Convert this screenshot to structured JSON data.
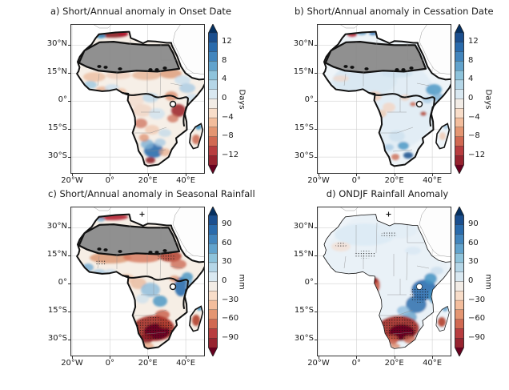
{
  "figure": {
    "background": "#ffffff",
    "description": "Four-panel anomaly maps over Africa with diverging red-blue colorbars; Sahara masked gray in panels a-c; black stippling over strong anomaly regions in panels c-d."
  },
  "colors": {
    "cmap_body": [
      "#1b4f8f",
      "#2a6bac",
      "#4285bd",
      "#62a3cd",
      "#8ec3db",
      "#b5d6e7",
      "#d9e8f1",
      "#f2ece6",
      "#f8ddc9",
      "#f3bd9c",
      "#e49672",
      "#d16952",
      "#b83d3f",
      "#97232f"
    ],
    "cmap_arrow_high": "#053061",
    "cmap_arrow_low": "#67001f",
    "mask_gray": "#909090",
    "grid": "#c8c8c8"
  },
  "panels": [
    {
      "label": "a",
      "title": "a) Short/Annual anomaly in Onset Date",
      "x_tick_labels": [
        "20°W",
        "0°",
        "20°E",
        "40°E"
      ],
      "y_tick_labels": [
        "30°N",
        "15°N",
        "0°",
        "15°S",
        "30°S"
      ],
      "colorbar": {
        "unit": "Days",
        "tick_labels": [
          "12",
          "8",
          "4",
          "0",
          "−4",
          "−8",
          "−12"
        ],
        "tick_values": [
          12,
          8,
          4,
          0,
          -4,
          -8,
          -12
        ],
        "range": [
          -14,
          14
        ]
      }
    },
    {
      "label": "b",
      "title": "b) Short/Annual anomaly in Cessation Date",
      "x_tick_labels": [
        "20°W",
        "0°",
        "20°E",
        "40°E"
      ],
      "y_tick_labels": [
        "30°N",
        "15°N",
        "0°",
        "15°S",
        "30°S"
      ],
      "colorbar": {
        "unit": "Days",
        "tick_labels": [
          "12",
          "8",
          "4",
          "0",
          "−4",
          "−8",
          "−12"
        ],
        "tick_values": [
          12,
          8,
          4,
          0,
          -4,
          -8,
          -12
        ],
        "range": [
          -14,
          14
        ]
      }
    },
    {
      "label": "c",
      "title": "c) Short/Annual anomaly in Seasonal Rainfall",
      "x_tick_labels": [
        "20°W",
        "0°",
        "20°E",
        "40°E"
      ],
      "y_tick_labels": [
        "30°N",
        "15°N",
        "0°",
        "15°S",
        "30°S"
      ],
      "colorbar": {
        "unit": "mm",
        "tick_labels": [
          "90",
          "60",
          "30",
          "0",
          "−30",
          "−60",
          "−90"
        ],
        "tick_values": [
          90,
          60,
          30,
          0,
          -30,
          -60,
          -90
        ],
        "range": [
          -105,
          105
        ]
      }
    },
    {
      "label": "d",
      "title": "d) ONDJF Rainfall Anomaly",
      "x_tick_labels": [
        "20°W",
        "0°",
        "20°E",
        "40°E"
      ],
      "y_tick_labels": [
        "30°N",
        "15°N",
        "0°",
        "15°S",
        "30°S"
      ],
      "colorbar": {
        "unit": "mm",
        "tick_labels": [
          "90",
          "60",
          "30",
          "0",
          "−30",
          "−60",
          "−90"
        ],
        "tick_values": [
          90,
          60,
          30,
          0,
          -30,
          -60,
          -90
        ],
        "range": [
          -105,
          105
        ]
      }
    }
  ],
  "chart_data": [
    {
      "type": "heatmap",
      "subtype": "geographic anomaly map",
      "panel": "a",
      "title": "a) Short/Annual anomaly in Onset Date",
      "region": "Africa (approx. 26°W–51°E, 41°N–39°S)",
      "x_ticks": [
        "20°W",
        "0°",
        "20°E",
        "40°E"
      ],
      "y_ticks": [
        "30°N",
        "15°N",
        "0°",
        "15°S",
        "30°S"
      ],
      "colorbar": {
        "label": "Days",
        "ticks": [
          12,
          8,
          4,
          0,
          -4,
          -8,
          -12
        ],
        "range": [
          -14,
          14
        ],
        "colormap": "RdBu (blue = positive)",
        "extend": "both"
      },
      "masked_region": "Sahara shown gray with thick black boundary",
      "qualitative_pattern": "Mixed weak anomalies: negative/red over Maghreb coast, Sahel patches, Tanzania–Kenya, Angola and Cape tip; positive/blue over interior South Africa, Horn of Africa and scattered West/Central Africa; Madagascar mixed (blue north, red south)."
    },
    {
      "type": "heatmap",
      "subtype": "geographic anomaly map",
      "panel": "b",
      "title": "b) Short/Annual anomaly in Cessation Date",
      "region": "Africa (approx. 26°W–51°E, 41°N–39°S)",
      "x_ticks": [
        "20°W",
        "0°",
        "20°E",
        "40°E"
      ],
      "y_ticks": [
        "30°N",
        "15°N",
        "0°",
        "15°S",
        "30°S"
      ],
      "colorbar": {
        "label": "Days",
        "ticks": [
          12,
          8,
          4,
          0,
          -4,
          -8,
          -12
        ],
        "range": [
          -14,
          14
        ],
        "colormap": "RdBu (blue = positive)",
        "extend": "both"
      },
      "masked_region": "Sahara shown gray with thick black boundary",
      "qualitative_pattern": "Predominantly weak positive (light blue) anomalies; stronger blue over the Horn of Africa and spots in southern South Africa; scattered weak red patches over Central Africa and Madagascar."
    },
    {
      "type": "heatmap",
      "subtype": "geographic anomaly map",
      "panel": "c",
      "title": "c) Short/Annual anomaly in Seasonal Rainfall",
      "region": "Africa (approx. 26°W–51°E, 41°N–39°S)",
      "x_ticks": [
        "20°W",
        "0°",
        "20°E",
        "40°E"
      ],
      "y_ticks": [
        "30°N",
        "15°N",
        "0°",
        "15°S",
        "30°S"
      ],
      "colorbar": {
        "label": "mm",
        "ticks": [
          90,
          60,
          30,
          0,
          -30,
          -60,
          -90
        ],
        "range": [
          -105,
          105
        ],
        "colormap": "RdBu (blue = positive)",
        "extend": "both"
      },
      "masked_region": "Sahara shown gray with thick black boundary",
      "qualitative_pattern": "Dry (red) band across the Sahel and Maghreb; wet (blue) Congo basin and East African coast; strong drying (dark red with black stippling) over southern Africa and southern Madagascar."
    },
    {
      "type": "heatmap",
      "subtype": "geographic anomaly map",
      "panel": "d",
      "title": "d) ONDJF Rainfall Anomaly",
      "region": "Africa (approx. 26°W–51°E, 41°N–39°S)",
      "x_ticks": [
        "20°W",
        "0°",
        "20°E",
        "40°E"
      ],
      "y_ticks": [
        "30°N",
        "15°N",
        "0°",
        "15°S",
        "30°S"
      ],
      "colorbar": {
        "label": "mm",
        "ticks": [
          90,
          60,
          30,
          0,
          -30,
          -60,
          -90
        ],
        "range": [
          -105,
          105
        ],
        "colormap": "RdBu (blue = positive)",
        "extend": "both"
      },
      "masked_region": "none (no gray Sahara mask)",
      "qualitative_pattern": "Weak wet (pale blue) anomalies over North and West Africa; strong wet (dark blue, stippled) over East Africa down to Zambia/Mozambique; strong dry (dark red, stippled) over southern Africa; local dry spot on Gabon coast; Madagascar wet north, dry south."
    }
  ]
}
